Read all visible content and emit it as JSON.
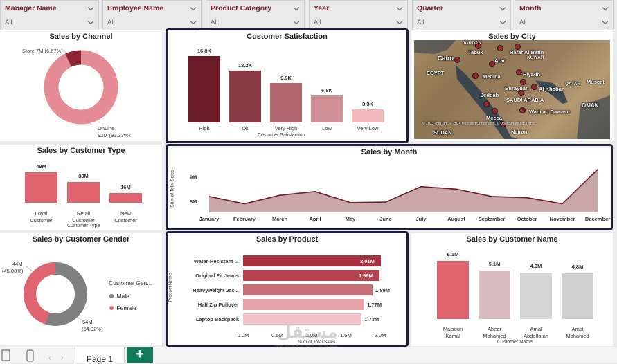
{
  "slicers": [
    {
      "title": "Manager Name",
      "value": "All"
    },
    {
      "title": "Employee Name",
      "value": "All"
    },
    {
      "title": "Product Category",
      "value": "All"
    },
    {
      "title": "Year",
      "value": "All"
    },
    {
      "title": "Quarter",
      "value": "All"
    },
    {
      "title": "Month",
      "value": "All"
    }
  ],
  "channel": {
    "title": "Sales by Channel",
    "store_label": "Store 7M (6.67%)",
    "online_label": "OnLine",
    "online_value": "92M (93.33%)",
    "chart_data": {
      "type": "pie",
      "labels": [
        "Store",
        "OnLine"
      ],
      "values": [
        7,
        92
      ],
      "percents": [
        6.67,
        93.33
      ],
      "unit": "M",
      "title": "Sales by Channel"
    }
  },
  "satisfaction": {
    "title": "Customer Satisfaction",
    "xlabel": "Customer Satisfaction",
    "categories": [
      "High",
      "Ok",
      "Very High",
      "Low",
      "Very Low"
    ],
    "labels": [
      "16.8K",
      "13.2K",
      "9.9K",
      "6.8K",
      "3.3K"
    ],
    "colors": [
      "#6b1c27",
      "#8a3a44",
      "#b0656d",
      "#d08f95",
      "#f2b8bc"
    ],
    "chart_data": {
      "type": "bar",
      "categories": [
        "High",
        "Ok",
        "Very High",
        "Low",
        "Very Low"
      ],
      "values": [
        16800,
        13200,
        9900,
        6800,
        3300
      ],
      "title": "Customer Satisfaction",
      "xlabel": "Customer Satisfaction"
    }
  },
  "city": {
    "title": "Sales by City",
    "cities": [
      "JORDAN",
      "Cairo",
      "Tabuk",
      "Hafar Al Batin",
      "KUWAIT",
      "Arar",
      "EGYPT",
      "Medina",
      "Riyadh",
      "Buraydah",
      "Al Khobar",
      "QATAR",
      "Muscat",
      "Jeddah",
      "SAUDI ARABIA",
      "OMAN",
      "Wadi ad Dawasir",
      "Mecca",
      "Najran",
      "SUDAN"
    ],
    "copyright": "© 2023 TomTom, © 2024 Microsoft Corporation, © OpenStreetMap Terms"
  },
  "customer_type": {
    "title": "Sales by Customer Type",
    "xlabel": "Customer Type",
    "categories": [
      "Loyal Customer",
      "Retail Customer",
      "New Customer"
    ],
    "labels": [
      "49M",
      "33M",
      "16M"
    ],
    "chart_data": {
      "type": "bar",
      "categories": [
        "Loyal Customer",
        "Retail Customer",
        "New Customer"
      ],
      "values": [
        49,
        33,
        16
      ],
      "unit": "M",
      "title": "Sales by Customer Type",
      "xlabel": "Customer Type"
    }
  },
  "month": {
    "title": "Sales by Month",
    "ylabel": "Sum of Total Sales",
    "yticks": [
      "9M",
      "8M"
    ],
    "chart_data": {
      "type": "area",
      "x": [
        "January",
        "February",
        "March",
        "April",
        "May",
        "June",
        "July",
        "August",
        "September",
        "October",
        "November",
        "December"
      ],
      "values": [
        8.2,
        7.9,
        8.25,
        8.4,
        7.95,
        7.97,
        8.6,
        8.5,
        8.2,
        8.15,
        7.9,
        9.3
      ],
      "unit": "M",
      "ylim": [
        7.55,
        9.55
      ],
      "title": "Sales by Month",
      "ylabel": "Sum of Total Sales"
    }
  },
  "gender": {
    "title": "Sales by Customer Gender",
    "legend_title": "Customer Gen...",
    "female_label": "44M",
    "female_pct": "(45.08%)",
    "male_label": "54M",
    "male_pct": "(54.92%)",
    "legend": [
      "Male",
      "Female"
    ],
    "colors": [
      "#808080",
      "#e0646f"
    ],
    "chart_data": {
      "type": "pie",
      "labels": [
        "Male",
        "Female"
      ],
      "values": [
        54,
        44
      ],
      "percents": [
        54.92,
        45.08
      ],
      "unit": "M",
      "title": "Sales by Customer Gender"
    }
  },
  "product": {
    "title": "Sales by Product",
    "ylabel": "Product Name",
    "xlabel": "Sum of Total Sales",
    "categories": [
      "Water-Resistant ...",
      "Original Fit Jeans",
      "Heavyweight Jac...",
      "Half Zip Pullover",
      "Laptop Backpack"
    ],
    "labels": [
      "2.01M",
      "1.99M",
      "1.89M",
      "1.77M",
      "1.73M"
    ],
    "xticks": [
      "0.0M",
      "0.5M",
      "1.0M",
      "1.5M",
      "2.0M"
    ],
    "colors": [
      "#a8303c",
      "#b4444f",
      "#c86e77",
      "#e6a2a8",
      "#f2c3c6"
    ],
    "chart_data": {
      "type": "bar",
      "orientation": "horizontal",
      "categories": [
        "Water-Resistant ...",
        "Original Fit Jeans",
        "Heavyweight Jac...",
        "Half Zip Pullover",
        "Laptop Backpack"
      ],
      "values": [
        2.01,
        1.99,
        1.89,
        1.77,
        1.73
      ],
      "unit": "M",
      "xlim": [
        0,
        2.0
      ],
      "title": "Sales by Product",
      "xlabel": "Sum of Total Sales",
      "ylabel": "Product Name"
    }
  },
  "customer_name": {
    "title": "Sales by Customer Name",
    "xlabel": "Customer Name",
    "categories": [
      "Maisoun Kamal",
      "Abeer Mohamed",
      "Amal Abdelfatah",
      "Amal Mohamed"
    ],
    "labels": [
      "6.1M",
      "5.1M",
      "4.9M",
      "4.8M"
    ],
    "colors": [
      "#e0646f",
      "#d8bcc0",
      "#d4d4d4",
      "#cfcfcf"
    ],
    "chart_data": {
      "type": "bar",
      "categories": [
        "Maisoun Kamal",
        "Abeer Mohamed",
        "Amal Abdelfatah",
        "Amal Mohamed"
      ],
      "values": [
        6.1,
        5.1,
        4.9,
        4.8
      ],
      "unit": "M",
      "title": "Sales by Customer Name",
      "xlabel": "Customer Name"
    }
  },
  "footer": {
    "page_tab": "Page 1",
    "add_label": "+"
  },
  "watermark": {
    "arabic": "مستقل",
    "latin": "mostaql.com"
  }
}
